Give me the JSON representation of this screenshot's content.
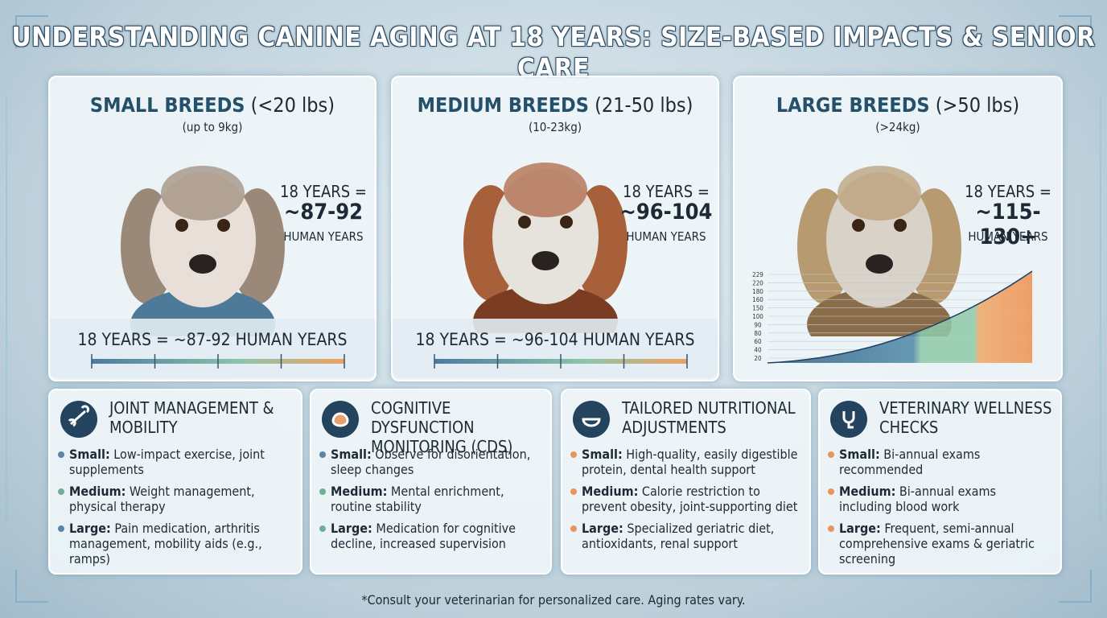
{
  "title": "UNDERSTANDING CANINE AGING AT 18 YEARS: SIZE-BASED IMPACTS & SENIOR CARE",
  "breeds": [
    {
      "name": "SMALL BREEDS",
      "weight": "(<20 lbs)",
      "metric": "(up to 9kg)",
      "years": "18 YEARS =",
      "range": "~87-92",
      "unit": "HUMAN YEARS",
      "bar_label": "18 YEARS = ~87-92 HUMAN YEARS"
    },
    {
      "name": "MEDIUM BREEDS",
      "weight": "(21-50 lbs)",
      "metric": "(10-23kg)",
      "years": "18 YEARS =",
      "range": "~96-104",
      "unit": "HUMAN YEARS",
      "bar_label": "18 YEARS = ~96-104 HUMAN YEARS"
    },
    {
      "name": "LARGE BREEDS",
      "weight": "(>50 lbs)",
      "metric": "(>24kg)",
      "years": "18 YEARS =",
      "range": "~115-130+",
      "unit": "HUMAN YEARS"
    }
  ],
  "growth_chart_ticks": [
    "229",
    "220",
    "180",
    "160",
    "150",
    "100",
    "90",
    "80",
    "60",
    "40",
    "20"
  ],
  "care": [
    {
      "title": "JOINT MANAGEMENT & MOBILITY",
      "items": [
        {
          "size": "Small:",
          "text": "Low-impact exercise, joint supplements"
        },
        {
          "size": "Medium:",
          "text": "Weight management, physical therapy"
        },
        {
          "size": "Large:",
          "text": "Pain medication, arthritis management, mobility aids (e.g., ramps)"
        }
      ]
    },
    {
      "title": "COGNITIVE DYSFUNCTION MONITORING (CDS)",
      "items": [
        {
          "size": "Small:",
          "text": "Observe for disorientation, sleep changes"
        },
        {
          "size": "Medium:",
          "text": "Mental enrichment, routine stability"
        },
        {
          "size": "Large:",
          "text": "Medication for cognitive decline, increased supervision"
        }
      ]
    },
    {
      "title": "TAILORED NUTRITIONAL ADJUSTMENTS",
      "items": [
        {
          "size": "Small:",
          "text": "High-quality, easily digestible protein, dental health support"
        },
        {
          "size": "Medium:",
          "text": "Calorie restriction to prevent obesity, joint-supporting diet"
        },
        {
          "size": "Large:",
          "text": "Specialized geriatric diet, antioxidants, renal support"
        }
      ]
    },
    {
      "title": "VETERINARY WELLNESS CHECKS",
      "items": [
        {
          "size": "Small:",
          "text": "Bi-annual exams recommended"
        },
        {
          "size": "Medium:",
          "text": "Bi-annual exams including blood work"
        },
        {
          "size": "Large:",
          "text": "Frequent, semi-annual comprehensive exams & geriatric screening"
        }
      ]
    }
  ],
  "footnote": "*Consult your veterinarian for personalized care. Aging rates vary."
}
